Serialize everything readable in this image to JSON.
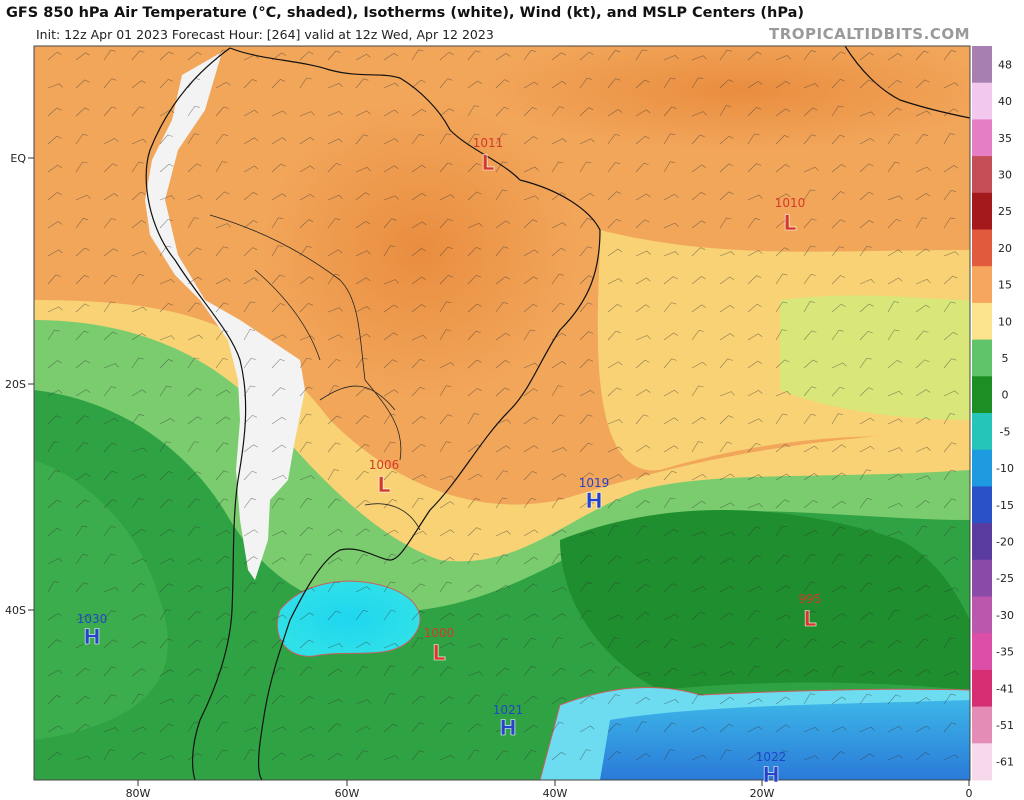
{
  "header": {
    "title": "GFS 850 hPa Air Temperature (°C, shaded), Isotherms (white), Wind (kt), and MSLP Centers (hPa)",
    "subtitle": "Init: 12z Apr 01 2023   Forecast Hour: [264]   valid at 12z Wed, Apr 12 2023",
    "brand": "TROPICALTIDBITS.COM"
  },
  "axes": {
    "lat_labels": [
      "EQ",
      "20S",
      "40S"
    ],
    "lon_labels": [
      "80W",
      "60W",
      "40W",
      "20W",
      "0"
    ]
  },
  "colorbar": {
    "ticks": [
      "48",
      "40",
      "35",
      "30",
      "25",
      "20",
      "15",
      "10",
      "5",
      "0",
      "-5",
      "-10",
      "-15",
      "-20",
      "-25",
      "-30",
      "-35",
      "-41",
      "-51",
      "-61"
    ],
    "colors": [
      "#a77fb0",
      "#f2c8ef",
      "#e67ec6",
      "#c34e56",
      "#a4191b",
      "#e25a3d",
      "#f7a65d",
      "#fbe48d",
      "#5fc46a",
      "#1d8e24",
      "#25c6b9",
      "#1e9be0",
      "#2a51c7",
      "#5a3ba0",
      "#8a4aa8",
      "#bb58ad",
      "#dd4ea8",
      "#d72e73",
      "#e58cb6",
      "#f6d9ea"
    ]
  },
  "pressure_centers": [
    {
      "type": "L",
      "value": "1011",
      "color": "#d43a2a"
    },
    {
      "type": "L",
      "value": "1010",
      "color": "#d43a2a"
    },
    {
      "type": "L",
      "value": "1006",
      "color": "#d43a2a"
    },
    {
      "type": "H",
      "value": "1019",
      "color": "#2344c8"
    },
    {
      "type": "H",
      "value": "1030",
      "color": "#2344c8"
    },
    {
      "type": "L",
      "value": "995",
      "color": "#d43a2a"
    },
    {
      "type": "L",
      "value": "1000",
      "color": "#d43a2a"
    },
    {
      "type": "H",
      "value": "1021",
      "color": "#2344c8"
    },
    {
      "type": "H",
      "value": "1022",
      "color": "#2344c8"
    }
  ]
}
